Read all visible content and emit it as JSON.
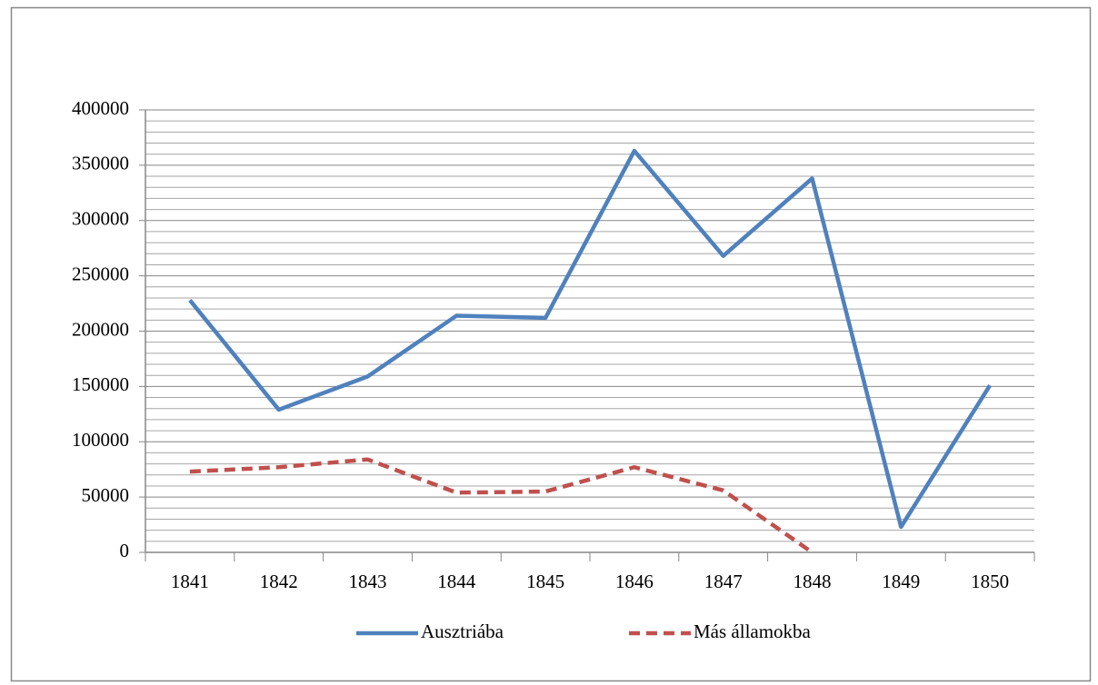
{
  "chart_data": {
    "type": "line",
    "categories": [
      "1841",
      "1842",
      "1843",
      "1844",
      "1845",
      "1846",
      "1847",
      "1848",
      "1849",
      "1850"
    ],
    "series": [
      {
        "name": "Ausztriába",
        "color": "#4f81bd",
        "dash": "solid",
        "values": [
          228000,
          129000,
          159000,
          214000,
          212000,
          363000,
          268000,
          338000,
          23000,
          151000
        ]
      },
      {
        "name": "Más államokba",
        "color": "#c0504d",
        "dash": "dashed",
        "values": [
          73000,
          77000,
          84000,
          54000,
          55000,
          77000,
          56000,
          0,
          null,
          null
        ]
      }
    ],
    "ylim": [
      0,
      400000
    ],
    "yticks": [
      0,
      50000,
      100000,
      150000,
      200000,
      250000,
      300000,
      350000,
      400000
    ],
    "yminorticks": [
      10000,
      20000,
      30000,
      40000,
      60000,
      70000,
      80000,
      90000,
      110000,
      120000,
      130000,
      140000,
      160000,
      170000,
      180000,
      190000,
      210000,
      220000,
      230000,
      240000,
      260000,
      270000,
      280000,
      290000,
      310000,
      320000,
      330000,
      340000,
      360000,
      370000,
      380000,
      390000
    ],
    "grid": true,
    "legend": "bottom"
  }
}
